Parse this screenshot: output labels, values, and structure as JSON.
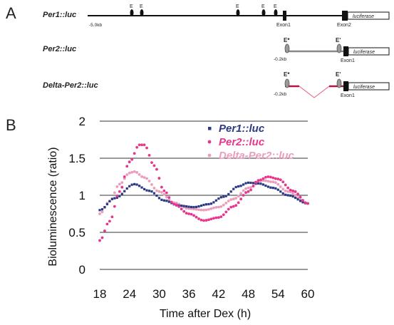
{
  "panel_a": {
    "label": "A",
    "constructs": [
      {
        "name": "Per1::luc",
        "start_label": "-5.0kb",
        "e_box_labels": [
          "E",
          "E",
          "E",
          "E",
          "E"
        ],
        "exon_labels": [
          "Exon1",
          "Exon2"
        ],
        "reporter_label": "luciferase"
      },
      {
        "name": "Per2::luc",
        "start_label": "-0.2kb",
        "e_box_labels": [
          "E*",
          "E'"
        ],
        "exon_labels": [
          "Exon1"
        ],
        "reporter_label": "luciferase"
      },
      {
        "name": "Delta-Per2::luc",
        "start_label": "-0.2kb",
        "e_box_labels": [
          "E*",
          "E'"
        ],
        "exon_labels": [
          "Exon1"
        ],
        "reporter_label": "luciferase"
      }
    ],
    "colors": {
      "per2_line": "#888888",
      "delta_line": "#b01840",
      "delta_gap": "#e0607a"
    }
  },
  "panel_b": {
    "label": "B"
  },
  "chart_data": {
    "type": "scatter",
    "xlabel": "Time after Dex (h)",
    "ylabel": "Bioluminescence (ratio)",
    "xlim": [
      18,
      60
    ],
    "ylim": [
      0,
      2
    ],
    "x_ticks": [
      "18",
      "24",
      "30",
      "36",
      "42",
      "48",
      "54",
      "60"
    ],
    "y_ticks": [
      "0",
      "0.5",
      "1",
      "1.5",
      "2"
    ],
    "grid": "horizontal",
    "legend_position": "top-right",
    "series": [
      {
        "name": "Per1::luc",
        "color": "#2b3a86",
        "keypoints": [
          [
            18,
            0.8
          ],
          [
            21,
            0.96
          ],
          [
            25,
            1.15
          ],
          [
            28,
            1.06
          ],
          [
            31,
            0.93
          ],
          [
            34,
            0.86
          ],
          [
            37,
            0.84
          ],
          [
            40,
            0.88
          ],
          [
            43,
            0.98
          ],
          [
            46,
            1.12
          ],
          [
            48,
            1.17
          ],
          [
            50,
            1.16
          ],
          [
            53,
            1.1
          ],
          [
            56,
            1.0
          ],
          [
            60,
            0.89
          ]
        ]
      },
      {
        "name": "Per2::luc",
        "color": "#e8368f",
        "keypoints": [
          [
            18,
            0.39
          ],
          [
            20,
            0.65
          ],
          [
            22,
            1.05
          ],
          [
            24,
            1.45
          ],
          [
            26,
            1.68
          ],
          [
            27,
            1.68
          ],
          [
            29,
            1.4
          ],
          [
            31,
            1.06
          ],
          [
            33,
            0.88
          ],
          [
            36,
            0.75
          ],
          [
            39,
            0.66
          ],
          [
            42,
            0.7
          ],
          [
            45,
            0.85
          ],
          [
            48,
            1.05
          ],
          [
            50,
            1.2
          ],
          [
            52,
            1.25
          ],
          [
            54,
            1.22
          ],
          [
            57,
            1.06
          ],
          [
            60,
            0.89
          ]
        ]
      },
      {
        "name": "Delta-Per2::luc",
        "color": "#eb9dbe",
        "keypoints": [
          [
            18,
            0.75
          ],
          [
            20,
            0.92
          ],
          [
            22,
            1.15
          ],
          [
            24,
            1.3
          ],
          [
            25,
            1.32
          ],
          [
            27,
            1.24
          ],
          [
            30,
            1.05
          ],
          [
            33,
            0.9
          ],
          [
            36,
            0.82
          ],
          [
            39,
            0.8
          ],
          [
            42,
            0.84
          ],
          [
            45,
            0.95
          ],
          [
            48,
            1.1
          ],
          [
            51,
            1.2
          ],
          [
            53,
            1.18
          ],
          [
            56,
            1.05
          ],
          [
            60,
            0.89
          ]
        ]
      }
    ]
  }
}
